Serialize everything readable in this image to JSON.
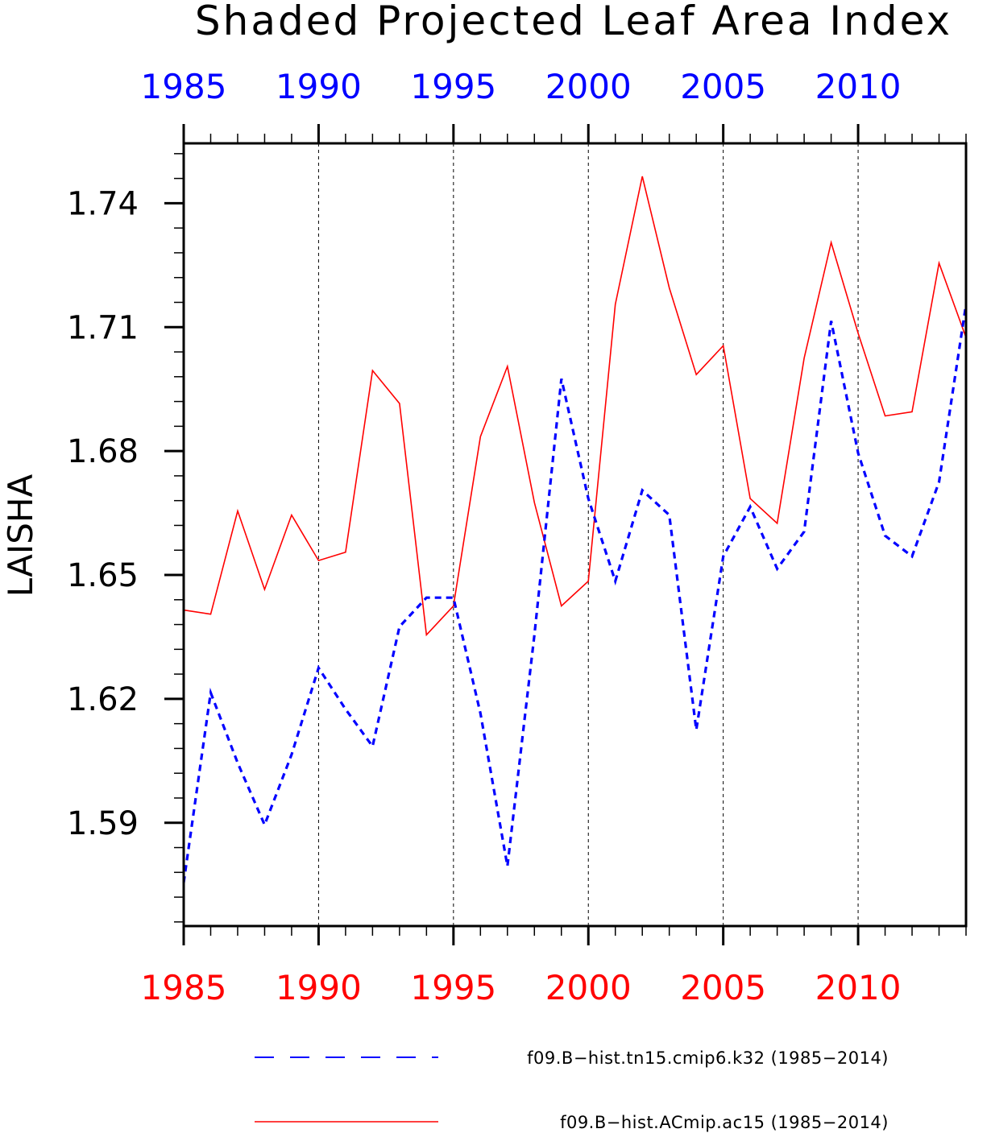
{
  "chart_data": {
    "type": "line",
    "title": "Shaded Projected Leaf Area Index",
    "ylabel": "LAISHA",
    "xlim": [
      1985,
      2014
    ],
    "ylim": [
      1.565,
      1.7545
    ],
    "x_ticks": [
      "1985",
      "1990",
      "1995",
      "2000",
      "2005",
      "2010"
    ],
    "y_ticks": [
      "1.59",
      "1.62",
      "1.65",
      "1.68",
      "1.71",
      "1.74"
    ],
    "top_axis_color": "#0000ff",
    "bottom_axis_color": "#ff0000",
    "grid": "vertical dashed at major x ticks",
    "legend_position": "bottom",
    "x": [
      1985,
      1986,
      1987,
      1988,
      1989,
      1990,
      1991,
      1992,
      1993,
      1994,
      1995,
      1996,
      1997,
      1998,
      1999,
      2000,
      2001,
      2002,
      2003,
      2004,
      2005,
      2006,
      2007,
      2008,
      2009,
      2010,
      2011,
      2012,
      2013,
      2014
    ],
    "series": [
      {
        "name": "f09.B−hist.tn15.cmip6.k32 (1985−2014)",
        "color": "#0000ff",
        "style": "dashed",
        "values": [
          1.5755,
          1.6215,
          1.6045,
          1.5895,
          1.6065,
          1.6275,
          1.6175,
          1.6085,
          1.6375,
          1.6445,
          1.6445,
          1.6165,
          1.5795,
          1.6355,
          1.6975,
          1.6685,
          1.6485,
          1.6705,
          1.6645,
          1.6125,
          1.6545,
          1.6665,
          1.6515,
          1.6605,
          1.7115,
          1.6795,
          1.6595,
          1.6545,
          1.6725,
          1.7155
        ]
      },
      {
        "name": "f09.B−hist.ACmip.ac15 (1985−2014)",
        "color": "#ff0000",
        "style": "solid",
        "values": [
          1.6415,
          1.6405,
          1.6655,
          1.6465,
          1.6645,
          1.6535,
          1.6555,
          1.6995,
          1.6915,
          1.6355,
          1.6425,
          1.6835,
          1.7005,
          1.6675,
          1.6425,
          1.6485,
          1.7155,
          1.7465,
          1.7195,
          1.6985,
          1.7055,
          1.6685,
          1.6625,
          1.7025,
          1.7305,
          1.7085,
          1.6885,
          1.6895,
          1.7255,
          1.7075
        ]
      }
    ]
  }
}
